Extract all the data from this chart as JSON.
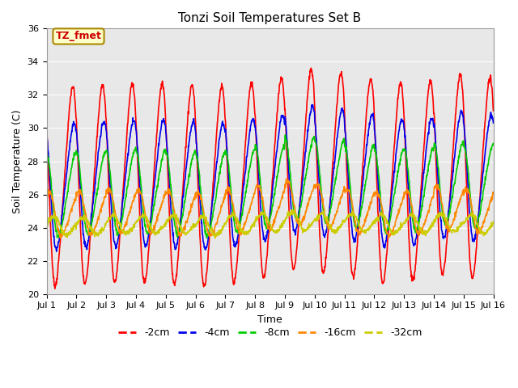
{
  "title": "Tonzi Soil Temperatures Set B",
  "xlabel": "Time",
  "ylabel": "Soil Temperature (C)",
  "ylim": [
    20,
    36
  ],
  "xlim": [
    0,
    15
  ],
  "annotation_text": "TZ_fmet",
  "annotation_bg": "#ffffcc",
  "annotation_border": "#aa8800",
  "bg_color": "#e8e8e8",
  "legend_labels": [
    "-2cm",
    "-4cm",
    "-8cm",
    "-16cm",
    "-32cm"
  ],
  "legend_colors": [
    "#ff0000",
    "#0000ee",
    "#00cc00",
    "#ff8800",
    "#cccc00"
  ],
  "line_widths": [
    1.2,
    1.2,
    1.2,
    1.2,
    1.2
  ],
  "xtick_labels": [
    "Jul 1",
    "Jul 2",
    "Jul 3",
    "Jul 4",
    "Jul 5",
    "Jul 6",
    "Jul 7",
    "Jul 8",
    "Jul 9",
    "Jul 10",
    "Jul 11",
    "Jul 12",
    "Jul 13",
    "Jul 14",
    "Jul 15",
    "Jul 16"
  ],
  "xtick_positions": [
    0,
    1,
    2,
    3,
    4,
    5,
    6,
    7,
    8,
    9,
    10,
    11,
    12,
    13,
    14,
    15
  ],
  "ytick_positions": [
    20,
    22,
    24,
    26,
    28,
    30,
    32,
    34,
    36
  ],
  "grid_color": "#ffffff",
  "n_per_day": 96,
  "n_days": 15,
  "depths": {
    "-2cm": {
      "amp": 6.0,
      "phase_hr": 0.0,
      "base": 26.5,
      "daily_means": [
        26.5,
        26.6,
        26.7,
        26.7,
        26.6,
        26.5,
        26.7,
        27.0,
        27.5,
        27.3,
        27.0,
        26.7,
        26.8,
        27.2,
        27.0
      ]
    },
    "-4cm": {
      "amp": 3.8,
      "phase_hr": 1.0,
      "base": 26.5,
      "daily_means": [
        26.5,
        26.6,
        26.7,
        26.7,
        26.6,
        26.5,
        26.7,
        27.0,
        27.5,
        27.3,
        27.0,
        26.7,
        26.8,
        27.2,
        27.0
      ]
    },
    "-8cm": {
      "amp": 2.5,
      "phase_hr": 2.5,
      "base": 26.0,
      "daily_means": [
        26.0,
        26.1,
        26.2,
        26.2,
        26.1,
        26.0,
        26.2,
        26.5,
        27.0,
        26.8,
        26.5,
        26.2,
        26.3,
        26.7,
        26.5
      ]
    },
    "-16cm": {
      "amp": 1.3,
      "phase_hr": 5.0,
      "base": 25.0,
      "daily_means": [
        24.8,
        24.9,
        25.0,
        25.0,
        24.9,
        24.8,
        25.0,
        25.2,
        25.5,
        25.3,
        25.0,
        24.8,
        24.9,
        25.2,
        25.0
      ]
    },
    "-32cm": {
      "amp": 0.55,
      "phase_hr": 9.0,
      "base": 24.2,
      "daily_means": [
        24.1,
        24.1,
        24.2,
        24.2,
        24.2,
        24.1,
        24.2,
        24.3,
        24.4,
        24.3,
        24.3,
        24.2,
        24.2,
        24.3,
        24.2
      ]
    }
  }
}
